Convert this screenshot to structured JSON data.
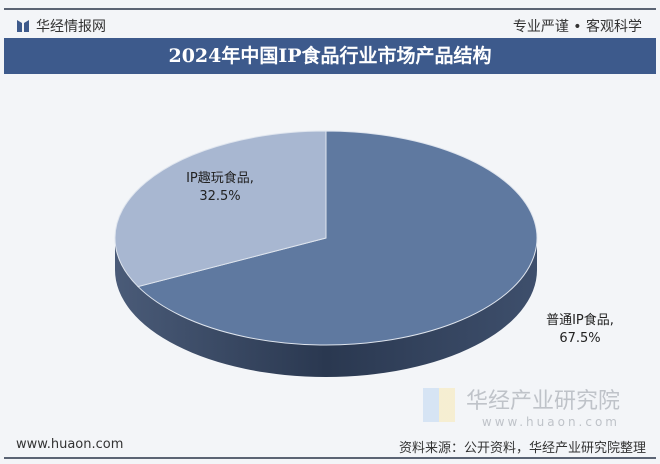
{
  "header": {
    "brand": "华经情报网",
    "slogan": "专业严谨 • 客观科学",
    "title": "2024年中国IP食品行业市场产品结构"
  },
  "chart_data": {
    "type": "pie",
    "title": "2024年中国IP食品行业市场产品结构",
    "style": "3d",
    "categories": [
      "普通IP食品",
      "IP趣玩食品"
    ],
    "values": [
      67.5,
      32.5
    ],
    "units": "%",
    "labels": [
      "普通IP食品,\n67.5%",
      "IP趣玩食品,\n32.5%"
    ],
    "colors": [
      "#5f79a0",
      "#a8b7d1"
    ]
  },
  "labels": {
    "big_name": "普通IP食品,",
    "big_value": "67.5%",
    "small_name": "IP趣玩食品,",
    "small_value": "32.5%"
  },
  "watermark": {
    "name": "华经产业研究院",
    "url": "www.huaon.com"
  },
  "footer": {
    "site": "www.huaon.com",
    "source": "资料来源：公开资料，华经产业研究院整理"
  }
}
